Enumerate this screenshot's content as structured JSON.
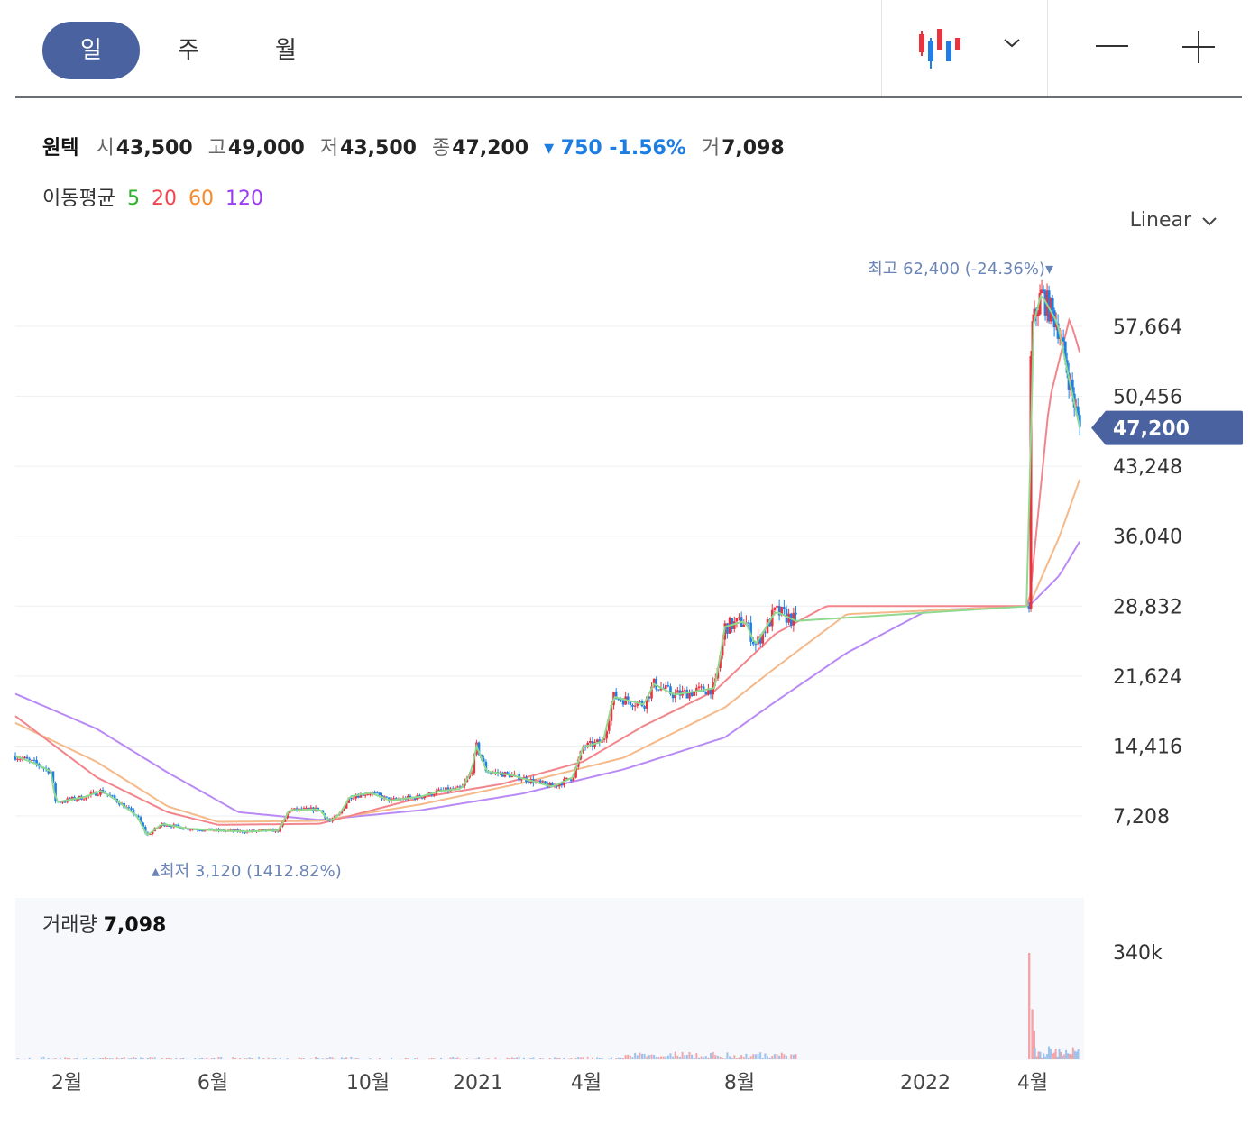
{
  "toolbar": {
    "tabs": [
      {
        "label": "일",
        "active": true
      },
      {
        "label": "주",
        "active": false
      },
      {
        "label": "월",
        "active": false
      }
    ],
    "chart_type_icon": "candlestick-icon",
    "dropdown_icon": "chevron-down-icon",
    "zoom_out_icon": "minus-icon",
    "zoom_in_icon": "plus-icon"
  },
  "stock": {
    "name": "원텍",
    "open_label": "시",
    "open": "43,500",
    "high_label": "고",
    "high": "49,000",
    "low_label": "저",
    "low": "43,500",
    "close_label": "종",
    "close": "47,200",
    "change": "▾ 750 -1.56%",
    "volume_label": "거",
    "volume": "7,098"
  },
  "moving_average": {
    "label": "이동평균",
    "periods": [
      "5",
      "20",
      "60",
      "120"
    ],
    "colors": [
      "#2cb32c",
      "#f0474f",
      "#f58a2b",
      "#9b3cf2"
    ]
  },
  "scale_mode": "Linear",
  "colors": {
    "up": "#e8343f",
    "down": "#1f7fe5",
    "accent": "#4a63a0",
    "annotation": "#6b84b7",
    "ma_line_5": "#8fd98f",
    "ma_line_20": "#f2858b",
    "ma_line_60": "#f5b98a",
    "ma_line_120": "#b98af5"
  },
  "chart_data": {
    "type": "candlestick",
    "y_ticks": [
      "57,664",
      "50,456",
      "43,248",
      "36,040",
      "28,832",
      "21,624",
      "14,416",
      "7,208"
    ],
    "y_tick_values": [
      57664,
      50456,
      43248,
      36040,
      28832,
      21624,
      14416,
      7208
    ],
    "x_ticks": [
      "2월",
      "6월",
      "10월",
      "2021",
      "4월",
      "8월",
      "2022",
      "4월"
    ],
    "current_price": "47,200",
    "high_annotation": {
      "label": "최고",
      "value": "62,400 (-24.36%)",
      "marker": "▾"
    },
    "low_annotation": {
      "label": "최저",
      "value": "3,120 (1412.82%)",
      "marker": "▴"
    },
    "volume": {
      "label": "거래량",
      "value": "7,098",
      "axis_tick": "340k"
    },
    "price_path": [
      [
        0,
        13400
      ],
      [
        0.02,
        12600
      ],
      [
        0.035,
        11800
      ],
      [
        0.04,
        8600
      ],
      [
        0.07,
        9200
      ],
      [
        0.085,
        9800
      ],
      [
        0.1,
        8800
      ],
      [
        0.12,
        7200
      ],
      [
        0.13,
        5200
      ],
      [
        0.145,
        6400
      ],
      [
        0.17,
        5900
      ],
      [
        0.2,
        5700
      ],
      [
        0.23,
        5600
      ],
      [
        0.25,
        5700
      ],
      [
        0.26,
        5700
      ],
      [
        0.27,
        7800
      ],
      [
        0.3,
        7900
      ],
      [
        0.31,
        6600
      ],
      [
        0.32,
        7400
      ],
      [
        0.33,
        9200
      ],
      [
        0.35,
        9600
      ],
      [
        0.37,
        8800
      ],
      [
        0.4,
        9200
      ],
      [
        0.42,
        9800
      ],
      [
        0.44,
        10000
      ],
      [
        0.45,
        11800
      ],
      [
        0.455,
        14400
      ],
      [
        0.465,
        11800
      ],
      [
        0.49,
        11400
      ],
      [
        0.51,
        10800
      ],
      [
        0.53,
        10200
      ],
      [
        0.55,
        11200
      ],
      [
        0.56,
        14300
      ],
      [
        0.58,
        14900
      ],
      [
        0.59,
        19500
      ],
      [
        0.62,
        18700
      ],
      [
        0.63,
        20800
      ],
      [
        0.65,
        19700
      ],
      [
        0.68,
        20200
      ],
      [
        0.69,
        20400
      ],
      [
        0.7,
        26700
      ],
      [
        0.72,
        27300
      ],
      [
        0.73,
        24800
      ],
      [
        0.75,
        28300
      ],
      [
        0.77,
        27300
      ],
      [
        1.0,
        28832
      ],
      [
        1.002,
        57000
      ],
      [
        1.012,
        61000
      ],
      [
        1.028,
        58000
      ],
      [
        1.04,
        52000
      ],
      [
        1.05,
        47200
      ]
    ],
    "ma_lines": {
      "ma20": [
        [
          0,
          17500
        ],
        [
          0.08,
          11200
        ],
        [
          0.15,
          7600
        ],
        [
          0.2,
          6300
        ],
        [
          0.3,
          6400
        ],
        [
          0.4,
          9100
        ],
        [
          0.48,
          10500
        ],
        [
          0.56,
          12800
        ],
        [
          0.62,
          16500
        ],
        [
          0.69,
          20100
        ],
        [
          0.75,
          26000
        ],
        [
          0.8,
          28832
        ],
        [
          1.0,
          28832
        ],
        [
          1.02,
          50000
        ],
        [
          1.04,
          58500
        ],
        [
          1.05,
          55000
        ]
      ],
      "ma60": [
        [
          0,
          16800
        ],
        [
          0.08,
          12800
        ],
        [
          0.15,
          8200
        ],
        [
          0.2,
          6600
        ],
        [
          0.3,
          6700
        ],
        [
          0.4,
          8400
        ],
        [
          0.5,
          10600
        ],
        [
          0.6,
          13200
        ],
        [
          0.7,
          18400
        ],
        [
          0.75,
          22500
        ],
        [
          0.82,
          28000
        ],
        [
          1.0,
          28832
        ],
        [
          1.03,
          36000
        ],
        [
          1.05,
          41900
        ]
      ],
      "ma120": [
        [
          0,
          19800
        ],
        [
          0.08,
          16200
        ],
        [
          0.15,
          11700
        ],
        [
          0.22,
          7600
        ],
        [
          0.3,
          6800
        ],
        [
          0.4,
          7800
        ],
        [
          0.5,
          9500
        ],
        [
          0.6,
          12000
        ],
        [
          0.7,
          15300
        ],
        [
          0.75,
          19000
        ],
        [
          0.82,
          24000
        ],
        [
          0.9,
          28400
        ],
        [
          1.0,
          28832
        ],
        [
          1.03,
          32000
        ],
        [
          1.05,
          35500
        ]
      ]
    },
    "volume_spikes": [
      [
        1.0,
        340000
      ],
      [
        1.003,
        160000
      ],
      [
        1.005,
        90000
      ]
    ]
  }
}
